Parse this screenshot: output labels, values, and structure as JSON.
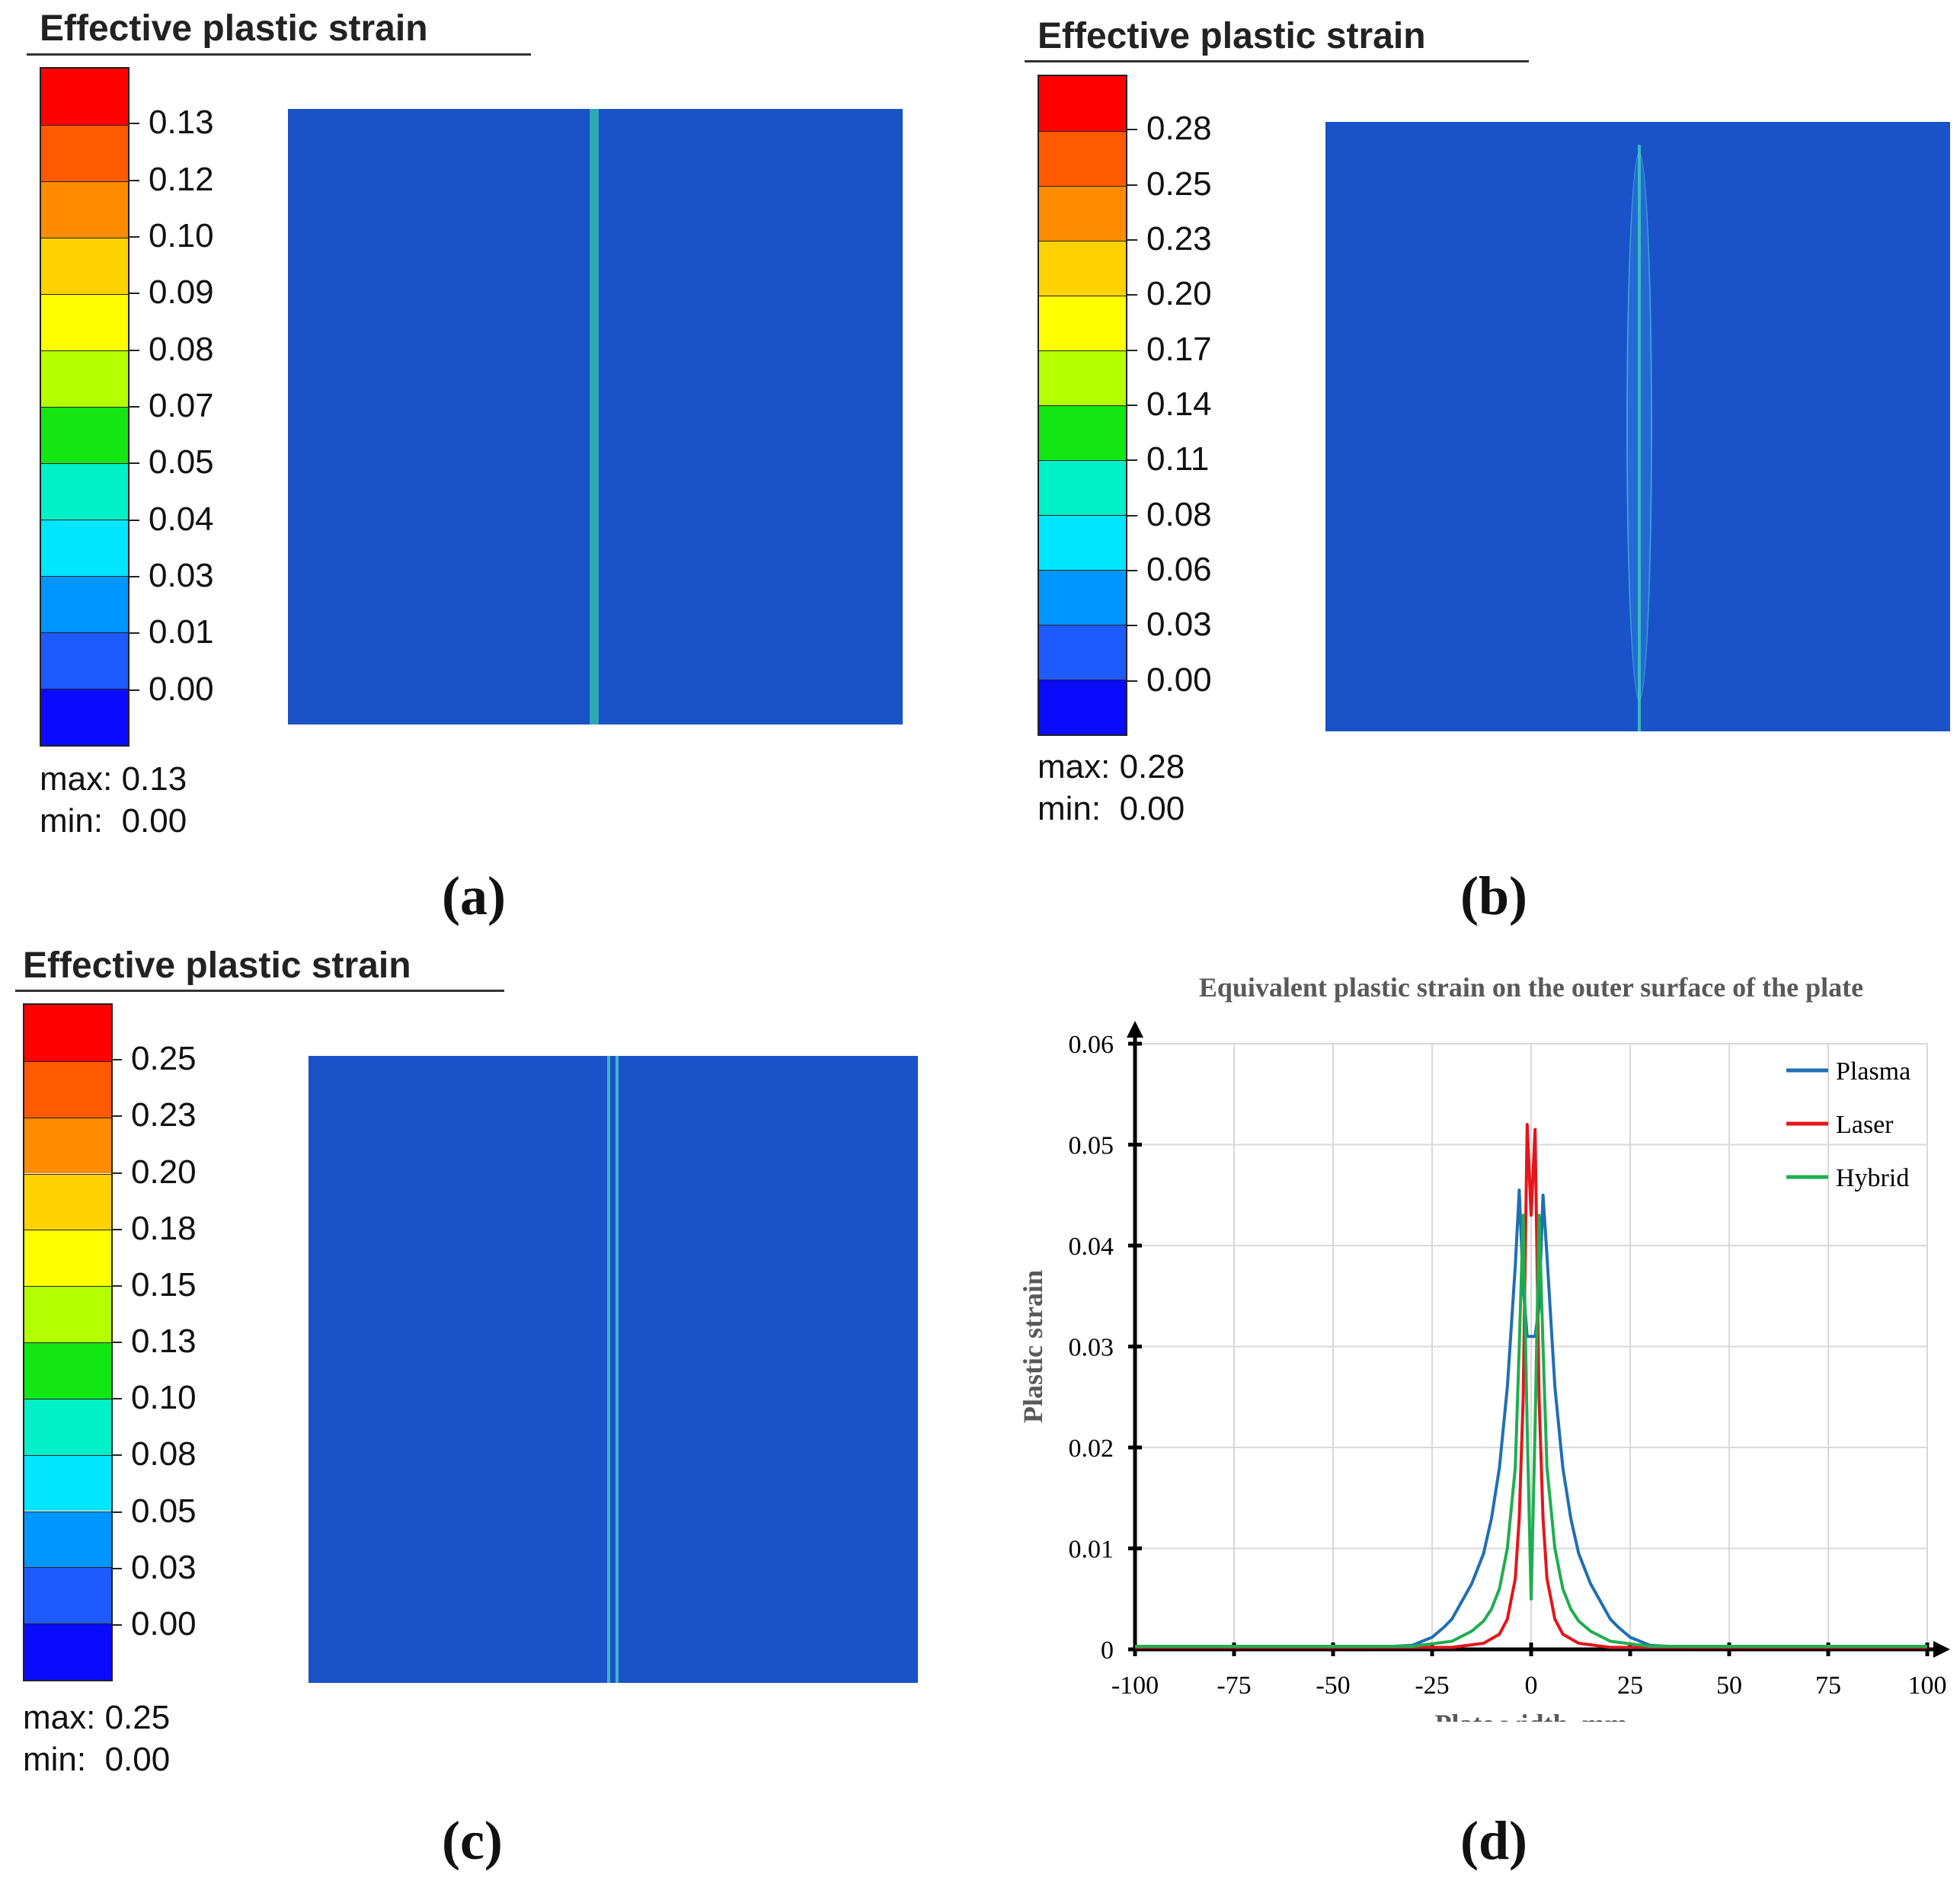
{
  "panels": [
    {
      "id": "a",
      "title": "Effective plastic strain",
      "ticks": [
        "0.13",
        "0.12",
        "0.10",
        "0.09",
        "0.08",
        "0.07",
        "0.05",
        "0.04",
        "0.03",
        "0.01",
        "0.00"
      ],
      "max_label": "max: 0.13",
      "min_label": "min:  0.00",
      "caption": "(a)",
      "max_value": 0.13,
      "min_value": 0.0
    },
    {
      "id": "b",
      "title": "Effective plastic strain",
      "ticks": [
        "0.28",
        "0.25",
        "0.23",
        "0.20",
        "0.17",
        "0.14",
        "0.11",
        "0.08",
        "0.06",
        "0.03",
        "0.00"
      ],
      "max_label": "max: 0.28",
      "min_label": "min:  0.00",
      "caption": "(b)",
      "max_value": 0.28,
      "min_value": 0.0
    },
    {
      "id": "c",
      "title": "Effective plastic strain",
      "ticks": [
        "0.25",
        "0.23",
        "0.20",
        "0.18",
        "0.15",
        "0.13",
        "0.10",
        "0.08",
        "0.05",
        "0.03",
        "0.00"
      ],
      "max_label": "max: 0.25",
      "min_label": "min:  0.00",
      "caption": "(c)",
      "max_value": 0.25,
      "min_value": 0.0
    }
  ],
  "colorbar_colors": [
    "#ff0000",
    "#ff5a00",
    "#ff8c00",
    "#ffd200",
    "#ffff00",
    "#b4ff00",
    "#14e614",
    "#00f0c8",
    "#00e6ff",
    "#0096ff",
    "#1e5aff",
    "#0a0aff"
  ],
  "plate_color": "#1a52c8",
  "weld_color": "#33c0b0",
  "caption_d": "(d)",
  "chart_data": {
    "type": "line",
    "title": "Equivalent plastic strain on the outer surface of the plate",
    "xlabel": "Plate width, mm",
    "ylabel": "Plastic strain",
    "xlim": [
      -100,
      100
    ],
    "ylim": [
      0,
      0.06
    ],
    "xticks": [
      -100,
      -75,
      -50,
      -25,
      0,
      25,
      50,
      75,
      100
    ],
    "yticks": [
      0,
      0.01,
      0.02,
      0.03,
      0.04,
      0.05,
      0.06
    ],
    "ytick_labels": [
      "0",
      "0.01",
      "0.02",
      "0.03",
      "0.04",
      "0.05",
      "0.06"
    ],
    "grid": true,
    "legend": "top-right",
    "series": [
      {
        "name": "Plasma",
        "color": "#1f6fb4",
        "x": [
          -100,
          -40,
          -30,
          -25,
          -22,
          -20,
          -15,
          -12,
          -10,
          -8,
          -6,
          -4,
          -3,
          -2,
          -1,
          0,
          1,
          2,
          3,
          4,
          6,
          8,
          10,
          12,
          15,
          20,
          22,
          25,
          30,
          40,
          100
        ],
        "y": [
          0.0002,
          0.0002,
          0.0004,
          0.0012,
          0.0022,
          0.003,
          0.0065,
          0.0095,
          0.013,
          0.018,
          0.026,
          0.038,
          0.0455,
          0.036,
          0.031,
          0.031,
          0.031,
          0.034,
          0.045,
          0.039,
          0.026,
          0.018,
          0.013,
          0.0095,
          0.0065,
          0.003,
          0.0022,
          0.0012,
          0.0004,
          0.0002,
          0.0002
        ]
      },
      {
        "name": "Laser",
        "color": "#e3161b",
        "x": [
          -100,
          -20,
          -12,
          -8,
          -6,
          -4,
          -3,
          -2,
          -1,
          0,
          1,
          2,
          3,
          4,
          6,
          8,
          12,
          20,
          100
        ],
        "y": [
          0.0002,
          0.0002,
          0.0006,
          0.0015,
          0.003,
          0.007,
          0.013,
          0.025,
          0.052,
          0.043,
          0.0515,
          0.025,
          0.013,
          0.007,
          0.003,
          0.0015,
          0.0006,
          0.0002,
          0.0002
        ]
      },
      {
        "name": "Hybrid",
        "color": "#1fae4f",
        "x": [
          -100,
          -30,
          -20,
          -15,
          -12,
          -10,
          -8,
          -6,
          -4,
          -3,
          -2,
          -1,
          0,
          1,
          2,
          3,
          4,
          6,
          8,
          10,
          12,
          15,
          20,
          30,
          100
        ],
        "y": [
          0.0003,
          0.0003,
          0.0008,
          0.0018,
          0.0028,
          0.004,
          0.006,
          0.01,
          0.018,
          0.03,
          0.043,
          0.022,
          0.005,
          0.022,
          0.043,
          0.03,
          0.018,
          0.01,
          0.006,
          0.004,
          0.0028,
          0.0018,
          0.0008,
          0.0003,
          0.0003
        ]
      }
    ]
  }
}
